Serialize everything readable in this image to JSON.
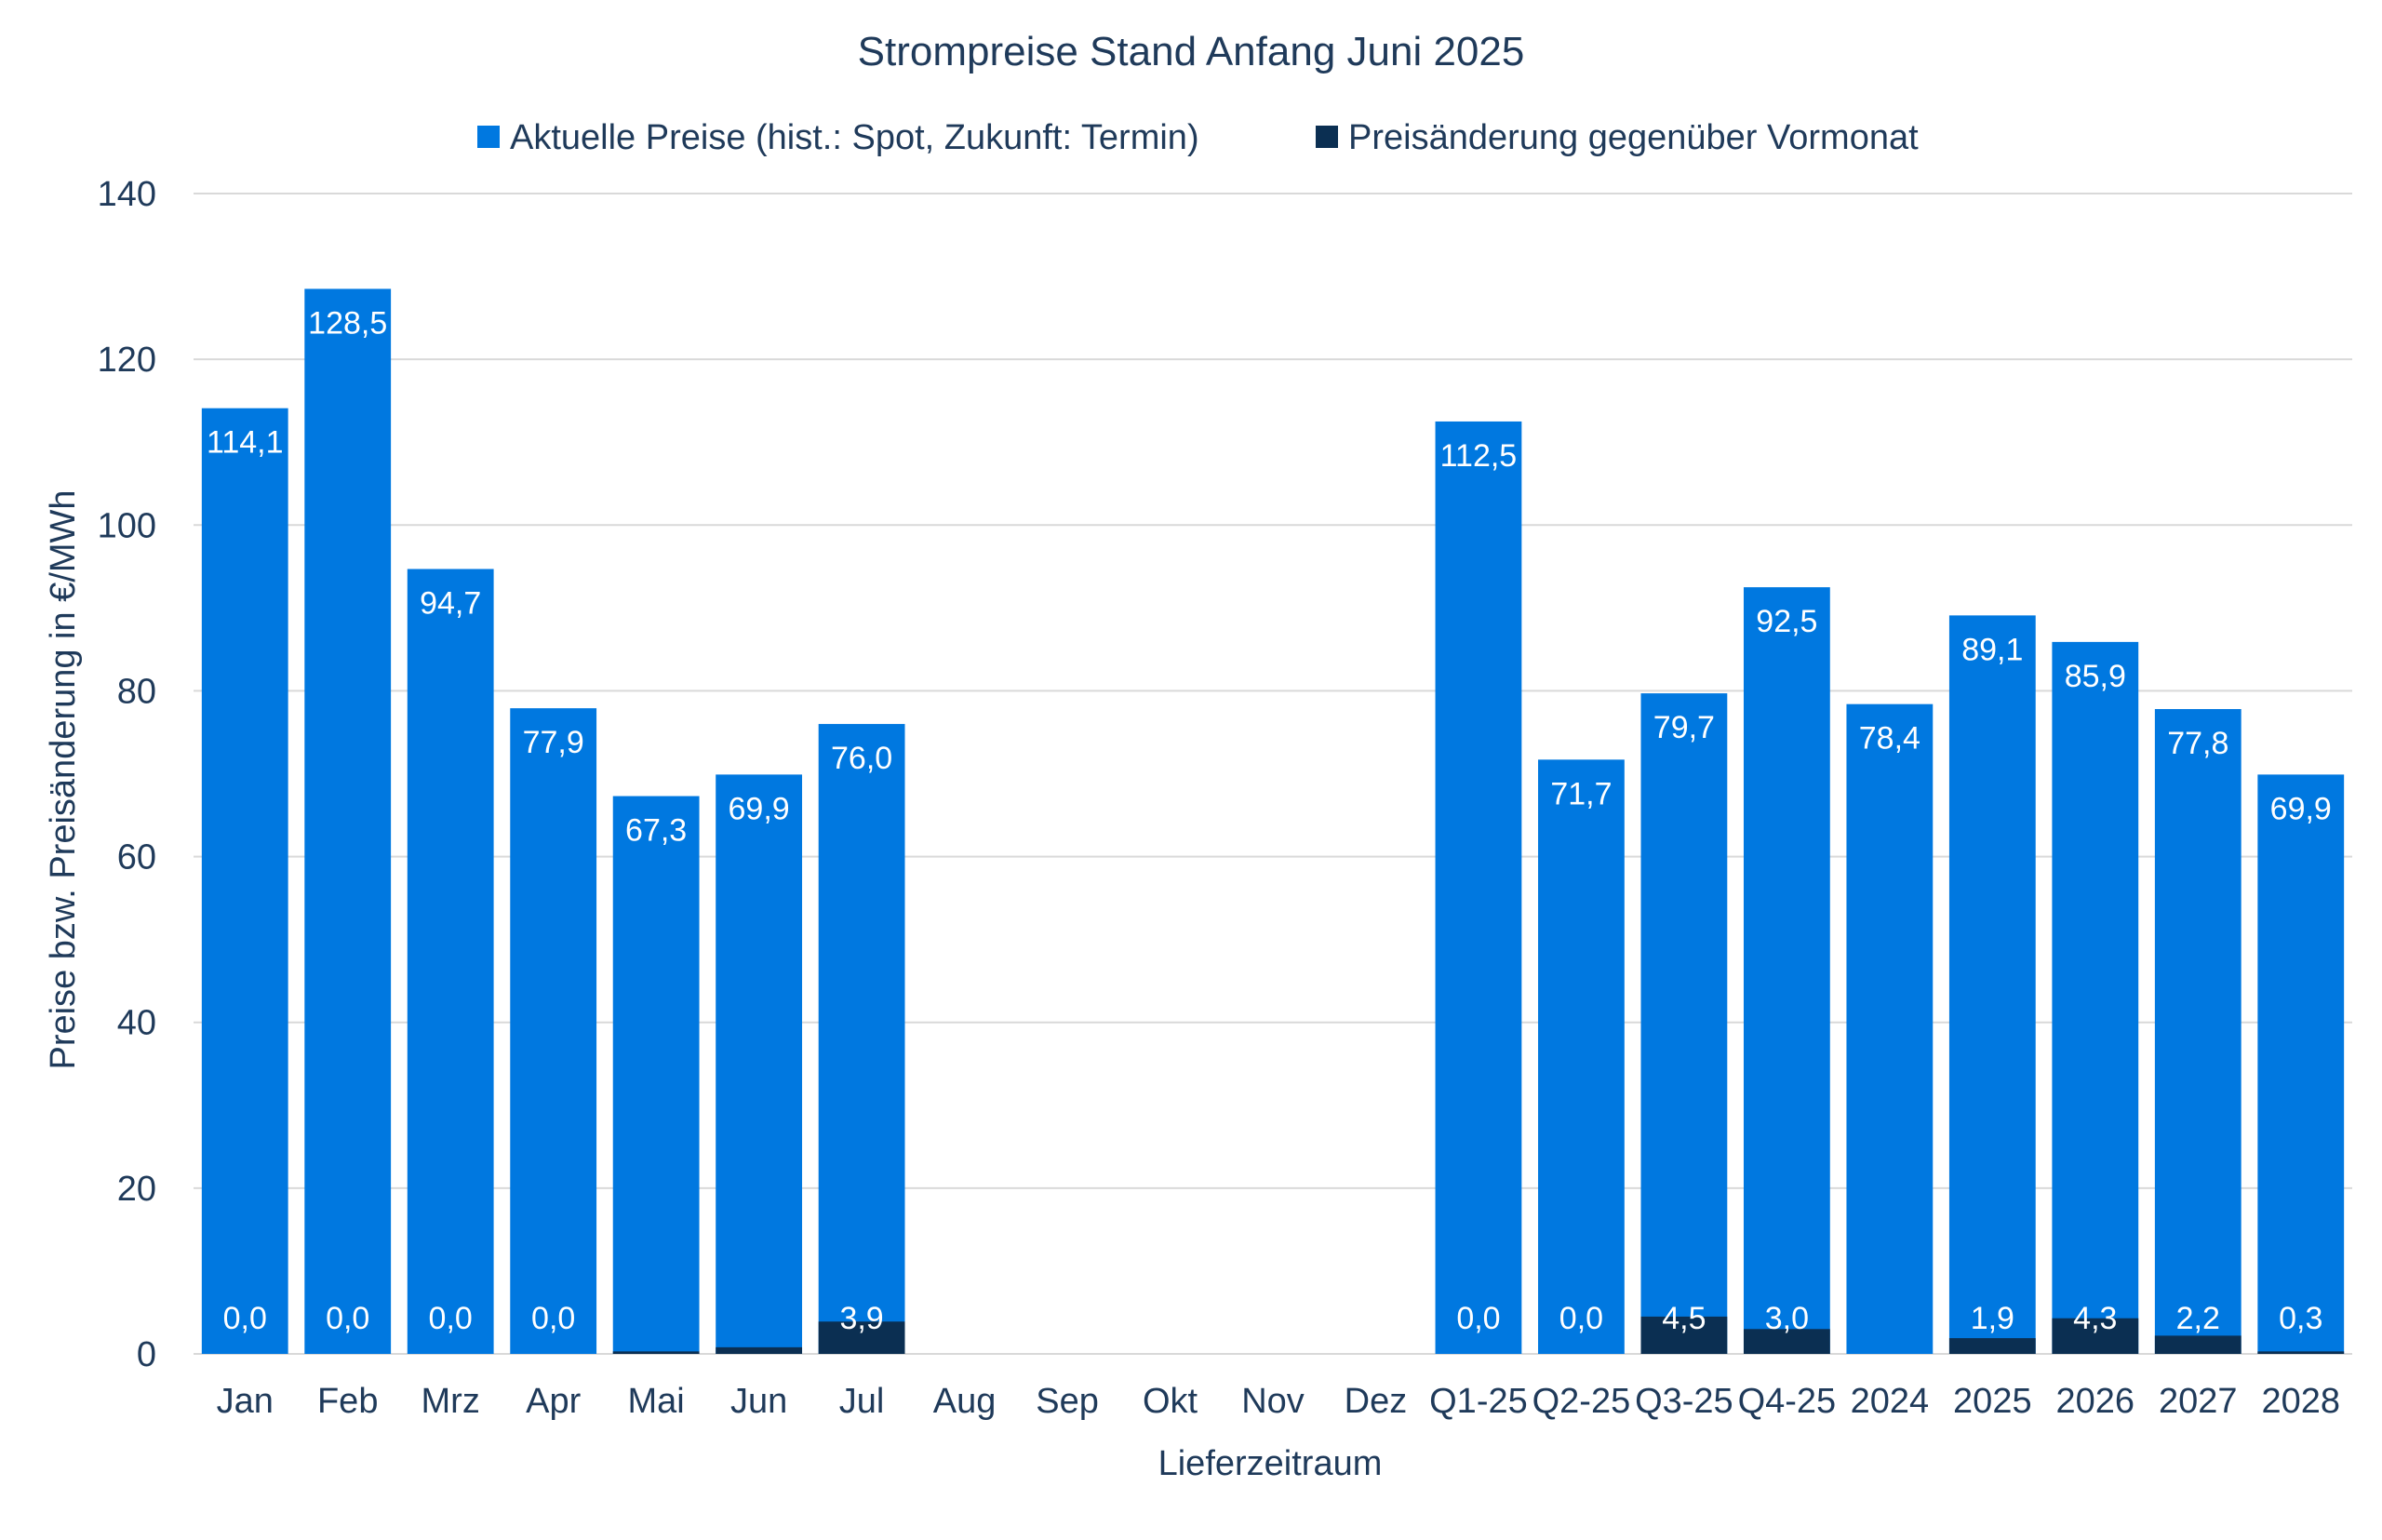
{
  "chart_data": {
    "type": "bar",
    "title": "Strompreise Stand Anfang Juni 2025",
    "xlabel": "Lieferzeitraum",
    "ylabel": "Preise bzw. Preisänderung in €/MWh",
    "ylim": [
      0,
      140
    ],
    "yticks": [
      0,
      20,
      40,
      60,
      80,
      100,
      120,
      140
    ],
    "grid": true,
    "legend_position": "top",
    "categories": [
      "Jan",
      "Feb",
      "Mrz",
      "Apr",
      "Mai",
      "Jun",
      "Jul",
      "Aug",
      "Sep",
      "Okt",
      "Nov",
      "Dez",
      "Q1-25",
      "Q2-25",
      "Q3-25",
      "Q4-25",
      "2024",
      "2025",
      "2026",
      "2027",
      "2028"
    ],
    "series": [
      {
        "name": "Aktuelle Preise (hist.: Spot, Zukunft: Termin)",
        "color": "#0078e0",
        "values": [
          114.1,
          128.5,
          94.7,
          77.9,
          67.3,
          69.9,
          76.0,
          null,
          null,
          null,
          null,
          null,
          112.5,
          71.7,
          79.7,
          92.5,
          78.4,
          89.1,
          85.9,
          77.8,
          69.9
        ],
        "labels": [
          "114,1",
          "128,5",
          "94,7",
          "77,9",
          "67,3",
          "69,9",
          "76,0",
          "",
          "",
          "",
          "",
          "",
          "112,5",
          "71,7",
          "79,7",
          "92,5",
          "78,4",
          "89,1",
          "85,9",
          "77,8",
          "69,9"
        ]
      },
      {
        "name": "Preisänderung gegenüber Vormonat",
        "color": "#0b2f52",
        "values": [
          0.0,
          0.0,
          0.0,
          0.0,
          0.3,
          0.8,
          3.9,
          null,
          null,
          null,
          null,
          null,
          0.0,
          0.0,
          4.5,
          3.0,
          0.0,
          1.9,
          4.3,
          2.2,
          0.3
        ],
        "labels": [
          "0,0",
          "0,0",
          "0,0",
          "0,0",
          "",
          "",
          "3,9",
          "",
          "",
          "",
          "",
          "",
          "0,0",
          "0,0",
          "4,5",
          "3,0",
          "",
          "1,9",
          "4,3",
          "2,2",
          "0,3"
        ]
      }
    ]
  }
}
